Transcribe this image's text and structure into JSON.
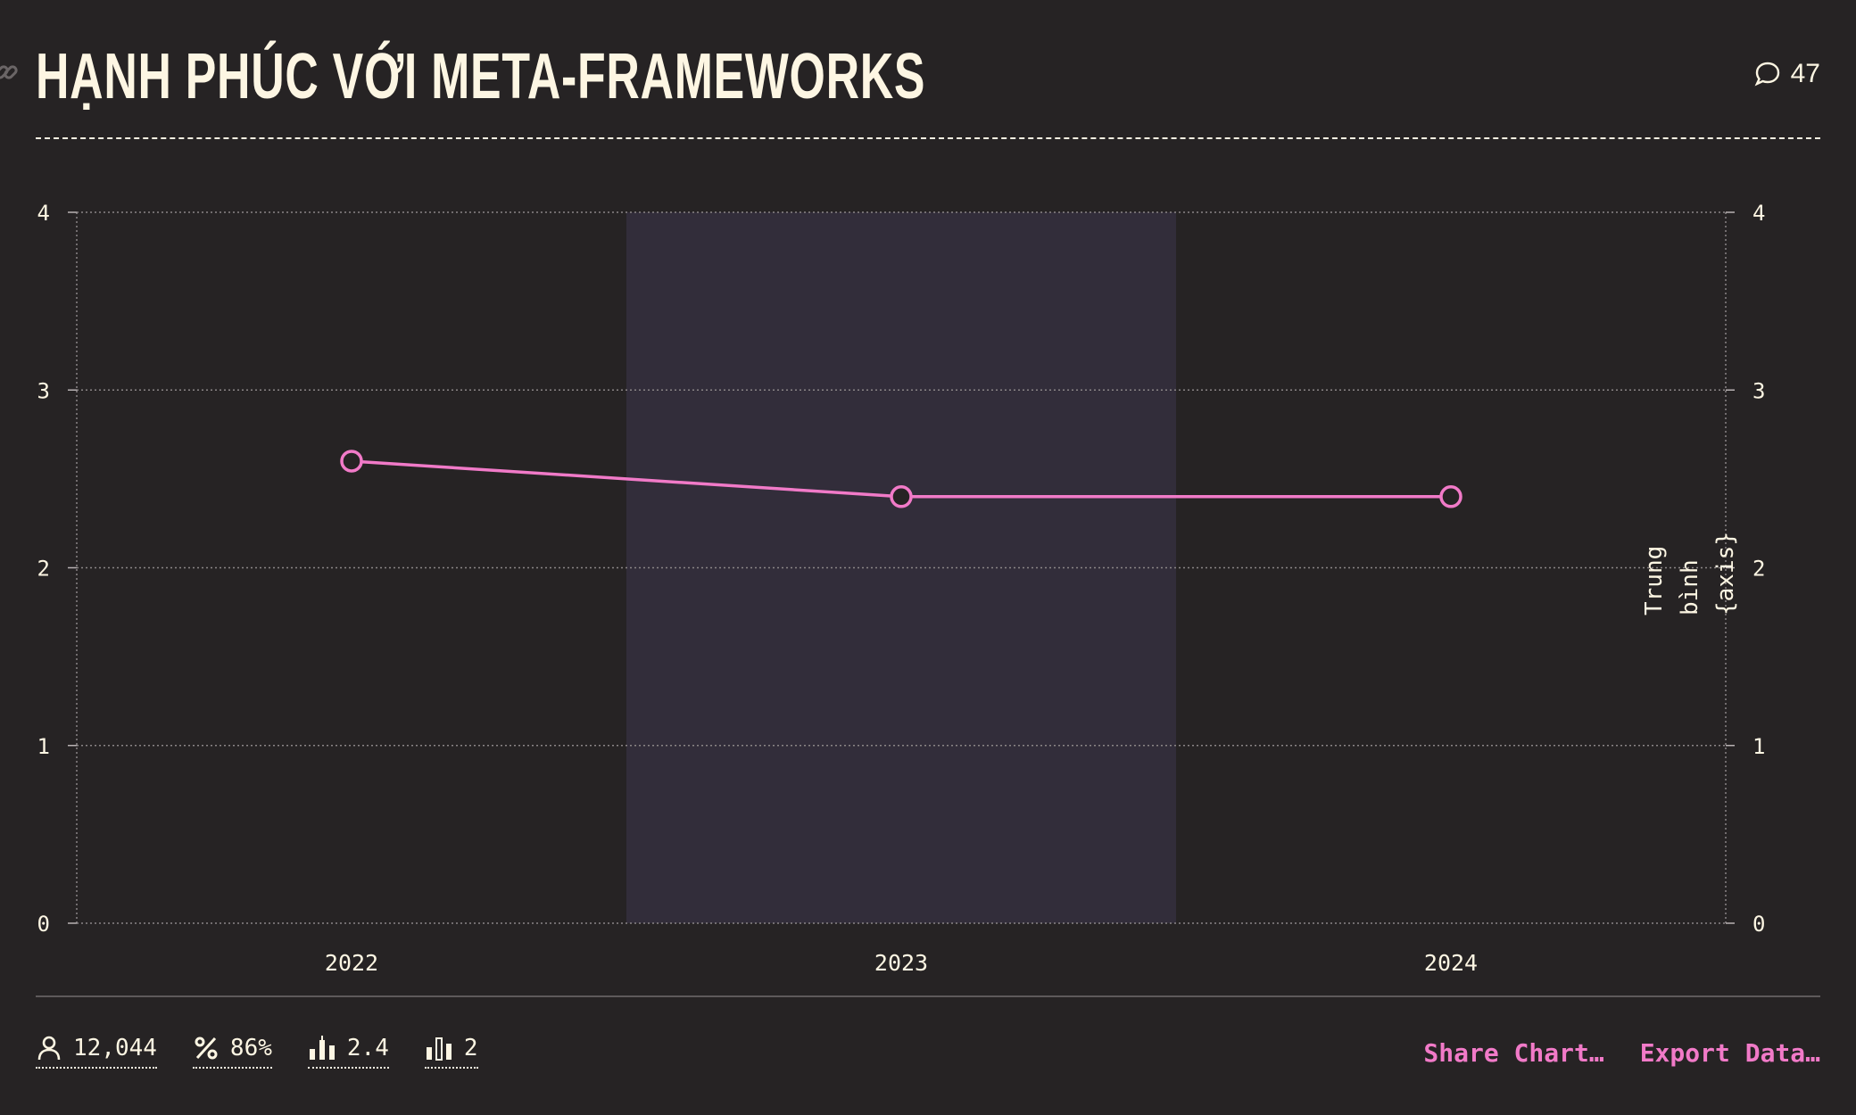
{
  "header": {
    "title": "Hạnh phúc với Meta-frameworks",
    "comment_count": "47"
  },
  "chart_data": {
    "type": "line",
    "x": [
      "2022",
      "2023",
      "2024"
    ],
    "series": [
      {
        "values": [
          2.6,
          2.4,
          2.4
        ],
        "color": "#f17ac8"
      }
    ],
    "ylim": [
      0,
      4
    ],
    "yticks": [
      "0",
      "1",
      "2",
      "3",
      "4"
    ],
    "right_axis_label": "Trung bình {axis}",
    "highlighted_category": "2023",
    "grid": true
  },
  "footer": {
    "stats": [
      {
        "icon": "person-icon",
        "value": "12,044"
      },
      {
        "icon": "percent-icon",
        "value": "86%"
      },
      {
        "icon": "bar-mean-icon",
        "value": "2.4"
      },
      {
        "icon": "bar-median-icon",
        "value": "2"
      }
    ],
    "share_label": "Share Chart…",
    "export_label": "Export Data…"
  },
  "colors": {
    "background": "#262324",
    "text": "#fdf6e3",
    "accent": "#f17ac8",
    "highlight_band": "#322d3a"
  }
}
